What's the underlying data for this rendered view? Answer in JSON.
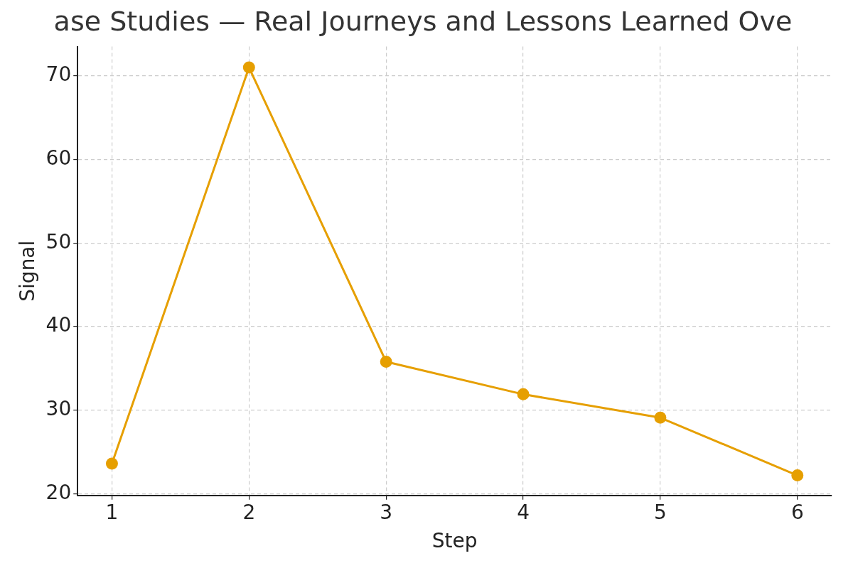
{
  "chart_data": {
    "type": "line",
    "title": "ase Studies — Real Journeys and Lessons Learned Ove",
    "xlabel": "Step",
    "ylabel": "Signal",
    "x": [
      1,
      2,
      3,
      4,
      5,
      6
    ],
    "series": [
      {
        "color": "#e69f00",
        "values": [
          23.6,
          71.0,
          35.8,
          31.9,
          29.1,
          22.2
        ]
      }
    ],
    "xlim": [
      0.75,
      6.25
    ],
    "xticks": [
      1,
      2,
      3,
      4,
      5,
      6
    ],
    "ylim": [
      19.8,
      73.5
    ],
    "yticks": [
      20,
      30,
      40,
      50,
      60,
      70
    ],
    "grid": true,
    "legend": false,
    "marker": "circle",
    "line_style": "solid"
  }
}
